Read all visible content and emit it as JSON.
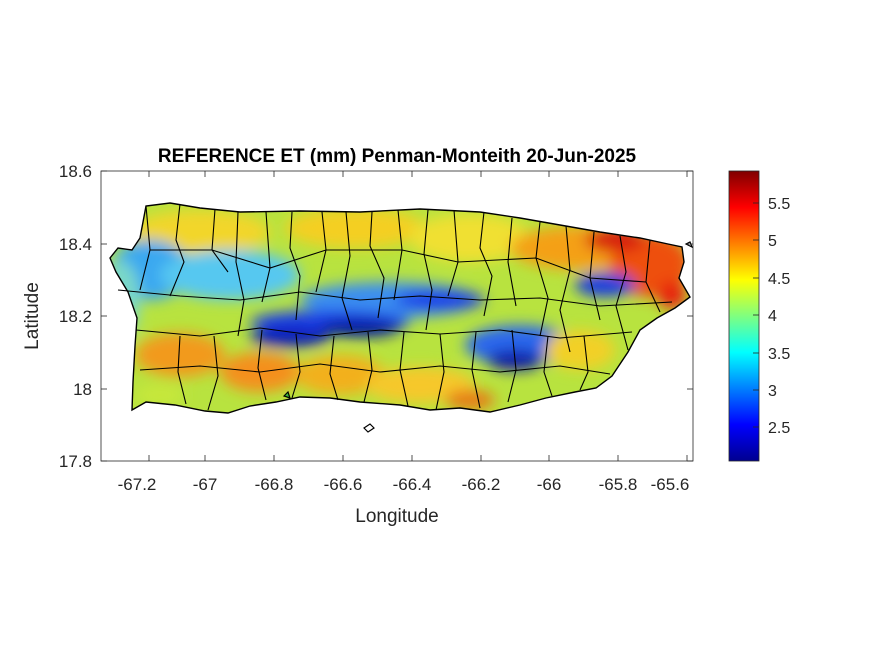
{
  "title": "REFERENCE ET (mm) Penman-Monteith 20-Jun-2025",
  "x_label": "Longitude",
  "y_label": "Latitude",
  "x_ticks": [
    "-67.2",
    "-67",
    "-66.8",
    "-66.6",
    "-66.4",
    "-66.2",
    "-66",
    "-65.8",
    "-65.6"
  ],
  "y_ticks": [
    "18.6",
    "18.4",
    "18.2",
    "18",
    "17.8"
  ],
  "colorbar_ticks": [
    "5.5",
    "5",
    "4.5",
    "4",
    "3.5",
    "3",
    "2.5"
  ],
  "map": {
    "variable": "Reference evapotranspiration (mm)",
    "method": "Penman-Monteith",
    "date": "20-Jun-2025",
    "x_range": [
      -67.3,
      -65.58
    ],
    "y_range": [
      17.8,
      18.6
    ],
    "color_range": [
      2.08,
      5.95
    ],
    "colormap": "jet",
    "region_outline_color": "#000000"
  }
}
